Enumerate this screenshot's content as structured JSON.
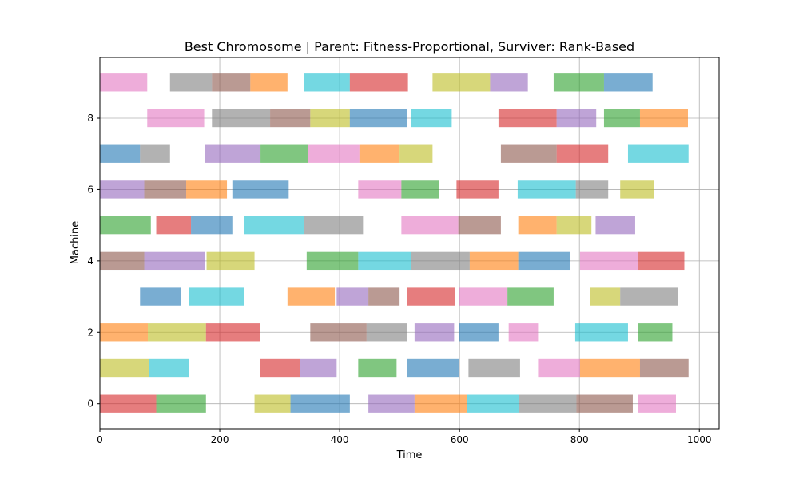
{
  "chart_data": {
    "type": "gantt",
    "title": "Best Chromosome | Parent: Fitness-Proportional, Surviver: Rank-Based",
    "xlabel": "Time",
    "ylabel": "Machine",
    "xlim": [
      0,
      1033
    ],
    "ylim": [
      -0.7,
      9.7
    ],
    "x_ticks": [
      0,
      200,
      400,
      600,
      800,
      1000
    ],
    "y_ticks": [
      0,
      2,
      4,
      6,
      8
    ],
    "grid": true,
    "bar_height": 0.5,
    "palette": {
      "blue": "#1f77b4",
      "orange": "#ff7f0e",
      "green": "#2ca02c",
      "red": "#d62728",
      "purple": "#9467bd",
      "brown": "#8c564b",
      "pink": "#e377c2",
      "gray": "#7f7f7f",
      "olive": "#bcbd22",
      "cyan": "#17becf"
    },
    "tasks": [
      {
        "machine": 0,
        "start": 0,
        "end": 94,
        "color": "red"
      },
      {
        "machine": 0,
        "start": 94,
        "end": 177,
        "color": "green"
      },
      {
        "machine": 0,
        "start": 258,
        "end": 318,
        "color": "olive"
      },
      {
        "machine": 0,
        "start": 318,
        "end": 417,
        "color": "blue"
      },
      {
        "machine": 0,
        "start": 448,
        "end": 525,
        "color": "purple"
      },
      {
        "machine": 0,
        "start": 525,
        "end": 612,
        "color": "orange"
      },
      {
        "machine": 0,
        "start": 612,
        "end": 699,
        "color": "cyan"
      },
      {
        "machine": 0,
        "start": 699,
        "end": 795,
        "color": "gray"
      },
      {
        "machine": 0,
        "start": 795,
        "end": 889,
        "color": "brown"
      },
      {
        "machine": 0,
        "start": 898,
        "end": 961,
        "color": "pink"
      },
      {
        "machine": 1,
        "start": 0,
        "end": 82,
        "color": "olive"
      },
      {
        "machine": 1,
        "start": 82,
        "end": 149,
        "color": "cyan"
      },
      {
        "machine": 1,
        "start": 267,
        "end": 334,
        "color": "red"
      },
      {
        "machine": 1,
        "start": 334,
        "end": 395,
        "color": "purple"
      },
      {
        "machine": 1,
        "start": 431,
        "end": 495,
        "color": "green"
      },
      {
        "machine": 1,
        "start": 512,
        "end": 599,
        "color": "blue"
      },
      {
        "machine": 1,
        "start": 615,
        "end": 701,
        "color": "gray"
      },
      {
        "machine": 1,
        "start": 731,
        "end": 801,
        "color": "pink"
      },
      {
        "machine": 1,
        "start": 801,
        "end": 901,
        "color": "orange"
      },
      {
        "machine": 1,
        "start": 901,
        "end": 982,
        "color": "brown"
      },
      {
        "machine": 2,
        "start": 0,
        "end": 80,
        "color": "orange"
      },
      {
        "machine": 2,
        "start": 80,
        "end": 177,
        "color": "olive"
      },
      {
        "machine": 2,
        "start": 177,
        "end": 267,
        "color": "red"
      },
      {
        "machine": 2,
        "start": 351,
        "end": 445,
        "color": "brown"
      },
      {
        "machine": 2,
        "start": 445,
        "end": 512,
        "color": "gray"
      },
      {
        "machine": 2,
        "start": 525,
        "end": 591,
        "color": "purple"
      },
      {
        "machine": 2,
        "start": 599,
        "end": 665,
        "color": "blue"
      },
      {
        "machine": 2,
        "start": 682,
        "end": 731,
        "color": "pink"
      },
      {
        "machine": 2,
        "start": 793,
        "end": 881,
        "color": "cyan"
      },
      {
        "machine": 2,
        "start": 898,
        "end": 955,
        "color": "green"
      },
      {
        "machine": 3,
        "start": 67,
        "end": 135,
        "color": "blue"
      },
      {
        "machine": 3,
        "start": 149,
        "end": 240,
        "color": "cyan"
      },
      {
        "machine": 3,
        "start": 313,
        "end": 392,
        "color": "orange"
      },
      {
        "machine": 3,
        "start": 395,
        "end": 448,
        "color": "purple"
      },
      {
        "machine": 3,
        "start": 448,
        "end": 500,
        "color": "brown"
      },
      {
        "machine": 3,
        "start": 512,
        "end": 593,
        "color": "red"
      },
      {
        "machine": 3,
        "start": 599,
        "end": 680,
        "color": "pink"
      },
      {
        "machine": 3,
        "start": 680,
        "end": 757,
        "color": "green"
      },
      {
        "machine": 3,
        "start": 818,
        "end": 868,
        "color": "olive"
      },
      {
        "machine": 3,
        "start": 868,
        "end": 965,
        "color": "gray"
      },
      {
        "machine": 4,
        "start": 0,
        "end": 74,
        "color": "brown"
      },
      {
        "machine": 4,
        "start": 74,
        "end": 175,
        "color": "purple"
      },
      {
        "machine": 4,
        "start": 178,
        "end": 258,
        "color": "olive"
      },
      {
        "machine": 4,
        "start": 345,
        "end": 431,
        "color": "green"
      },
      {
        "machine": 4,
        "start": 431,
        "end": 519,
        "color": "cyan"
      },
      {
        "machine": 4,
        "start": 519,
        "end": 617,
        "color": "gray"
      },
      {
        "machine": 4,
        "start": 617,
        "end": 698,
        "color": "orange"
      },
      {
        "machine": 4,
        "start": 698,
        "end": 784,
        "color": "blue"
      },
      {
        "machine": 4,
        "start": 801,
        "end": 898,
        "color": "pink"
      },
      {
        "machine": 4,
        "start": 898,
        "end": 975,
        "color": "red"
      },
      {
        "machine": 5,
        "start": 0,
        "end": 85,
        "color": "green"
      },
      {
        "machine": 5,
        "start": 94,
        "end": 152,
        "color": "red"
      },
      {
        "machine": 5,
        "start": 152,
        "end": 221,
        "color": "blue"
      },
      {
        "machine": 5,
        "start": 240,
        "end": 340,
        "color": "cyan"
      },
      {
        "machine": 5,
        "start": 340,
        "end": 439,
        "color": "gray"
      },
      {
        "machine": 5,
        "start": 503,
        "end": 598,
        "color": "pink"
      },
      {
        "machine": 5,
        "start": 598,
        "end": 669,
        "color": "brown"
      },
      {
        "machine": 5,
        "start": 698,
        "end": 762,
        "color": "orange"
      },
      {
        "machine": 5,
        "start": 762,
        "end": 820,
        "color": "olive"
      },
      {
        "machine": 5,
        "start": 827,
        "end": 893,
        "color": "purple"
      },
      {
        "machine": 6,
        "start": 0,
        "end": 74,
        "color": "purple"
      },
      {
        "machine": 6,
        "start": 74,
        "end": 144,
        "color": "brown"
      },
      {
        "machine": 6,
        "start": 144,
        "end": 212,
        "color": "orange"
      },
      {
        "machine": 6,
        "start": 221,
        "end": 315,
        "color": "blue"
      },
      {
        "machine": 6,
        "start": 431,
        "end": 503,
        "color": "pink"
      },
      {
        "machine": 6,
        "start": 503,
        "end": 566,
        "color": "green"
      },
      {
        "machine": 6,
        "start": 595,
        "end": 665,
        "color": "red"
      },
      {
        "machine": 6,
        "start": 697,
        "end": 794,
        "color": "cyan"
      },
      {
        "machine": 6,
        "start": 794,
        "end": 848,
        "color": "gray"
      },
      {
        "machine": 6,
        "start": 868,
        "end": 925,
        "color": "olive"
      },
      {
        "machine": 7,
        "start": 0,
        "end": 67,
        "color": "blue"
      },
      {
        "machine": 7,
        "start": 67,
        "end": 117,
        "color": "gray"
      },
      {
        "machine": 7,
        "start": 175,
        "end": 268,
        "color": "purple"
      },
      {
        "machine": 7,
        "start": 268,
        "end": 347,
        "color": "green"
      },
      {
        "machine": 7,
        "start": 347,
        "end": 433,
        "color": "pink"
      },
      {
        "machine": 7,
        "start": 433,
        "end": 500,
        "color": "orange"
      },
      {
        "machine": 7,
        "start": 500,
        "end": 555,
        "color": "olive"
      },
      {
        "machine": 7,
        "start": 669,
        "end": 762,
        "color": "brown"
      },
      {
        "machine": 7,
        "start": 762,
        "end": 848,
        "color": "red"
      },
      {
        "machine": 7,
        "start": 881,
        "end": 982,
        "color": "cyan"
      },
      {
        "machine": 8,
        "start": 79,
        "end": 174,
        "color": "pink"
      },
      {
        "machine": 8,
        "start": 187,
        "end": 284,
        "color": "gray"
      },
      {
        "machine": 8,
        "start": 284,
        "end": 351,
        "color": "brown"
      },
      {
        "machine": 8,
        "start": 351,
        "end": 417,
        "color": "olive"
      },
      {
        "machine": 8,
        "start": 417,
        "end": 512,
        "color": "blue"
      },
      {
        "machine": 8,
        "start": 519,
        "end": 587,
        "color": "cyan"
      },
      {
        "machine": 8,
        "start": 665,
        "end": 762,
        "color": "red"
      },
      {
        "machine": 8,
        "start": 762,
        "end": 828,
        "color": "purple"
      },
      {
        "machine": 8,
        "start": 841,
        "end": 901,
        "color": "green"
      },
      {
        "machine": 8,
        "start": 901,
        "end": 981,
        "color": "orange"
      },
      {
        "machine": 9,
        "start": 0,
        "end": 79,
        "color": "pink"
      },
      {
        "machine": 9,
        "start": 117,
        "end": 187,
        "color": "gray"
      },
      {
        "machine": 9,
        "start": 187,
        "end": 251,
        "color": "brown"
      },
      {
        "machine": 9,
        "start": 251,
        "end": 313,
        "color": "orange"
      },
      {
        "machine": 9,
        "start": 340,
        "end": 417,
        "color": "cyan"
      },
      {
        "machine": 9,
        "start": 417,
        "end": 514,
        "color": "red"
      },
      {
        "machine": 9,
        "start": 555,
        "end": 651,
        "color": "olive"
      },
      {
        "machine": 9,
        "start": 651,
        "end": 714,
        "color": "purple"
      },
      {
        "machine": 9,
        "start": 757,
        "end": 841,
        "color": "green"
      },
      {
        "machine": 9,
        "start": 841,
        "end": 922,
        "color": "blue"
      }
    ]
  }
}
